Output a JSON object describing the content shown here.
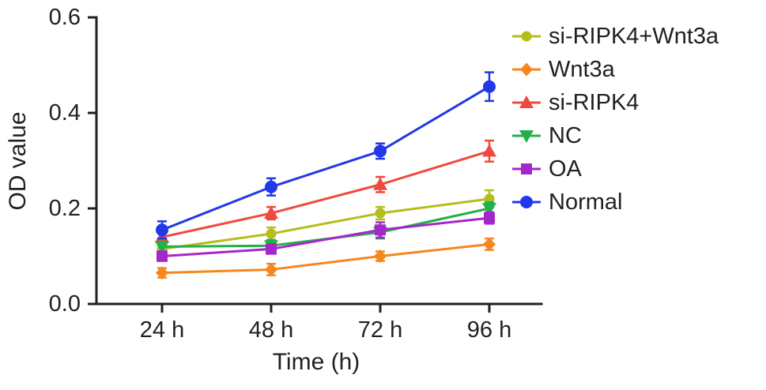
{
  "figure": {
    "background": "#ffffff"
  },
  "chart_data": {
    "type": "line",
    "title": "",
    "xlabel": "Time (h)",
    "ylabel": "OD value",
    "categories": [
      "24 h",
      "48 h",
      "72 h",
      "96 h"
    ],
    "ylim": [
      0,
      0.6
    ],
    "yticks": [
      0.0,
      0.2,
      0.4,
      0.6
    ],
    "ytick_labels": [
      "0.0",
      "0.2",
      "0.4",
      "0.6"
    ],
    "grid": false,
    "legend_position": "right",
    "axis_color": "#231f20",
    "error_bars": true,
    "series": [
      {
        "name": "si-RIPK4+Wnt3a",
        "color": "#b5bd1a",
        "marker": "circle-small",
        "values": [
          0.115,
          0.147,
          0.19,
          0.22
        ],
        "errors": [
          0.012,
          0.013,
          0.013,
          0.018
        ]
      },
      {
        "name": "Wnt3a",
        "color": "#f6861f",
        "marker": "diamond",
        "values": [
          0.065,
          0.072,
          0.1,
          0.125
        ],
        "errors": [
          0.01,
          0.012,
          0.01,
          0.012
        ]
      },
      {
        "name": "si-RIPK4",
        "color": "#f0493e",
        "marker": "triangle-up",
        "values": [
          0.14,
          0.19,
          0.25,
          0.32
        ],
        "errors": [
          0.015,
          0.013,
          0.016,
          0.022
        ]
      },
      {
        "name": "NC",
        "color": "#21b04b",
        "marker": "triangle-down",
        "values": [
          0.12,
          0.122,
          0.15,
          0.2
        ],
        "errors": [
          0.01,
          0.012,
          0.013,
          0.013
        ]
      },
      {
        "name": "OA",
        "color": "#a428c9",
        "marker": "square",
        "values": [
          0.1,
          0.115,
          0.155,
          0.18
        ],
        "errors": [
          0.01,
          0.01,
          0.016,
          0.012
        ]
      },
      {
        "name": "Normal",
        "color": "#2038e8",
        "marker": "circle",
        "values": [
          0.155,
          0.245,
          0.32,
          0.455
        ],
        "errors": [
          0.018,
          0.018,
          0.016,
          0.03
        ]
      }
    ]
  }
}
